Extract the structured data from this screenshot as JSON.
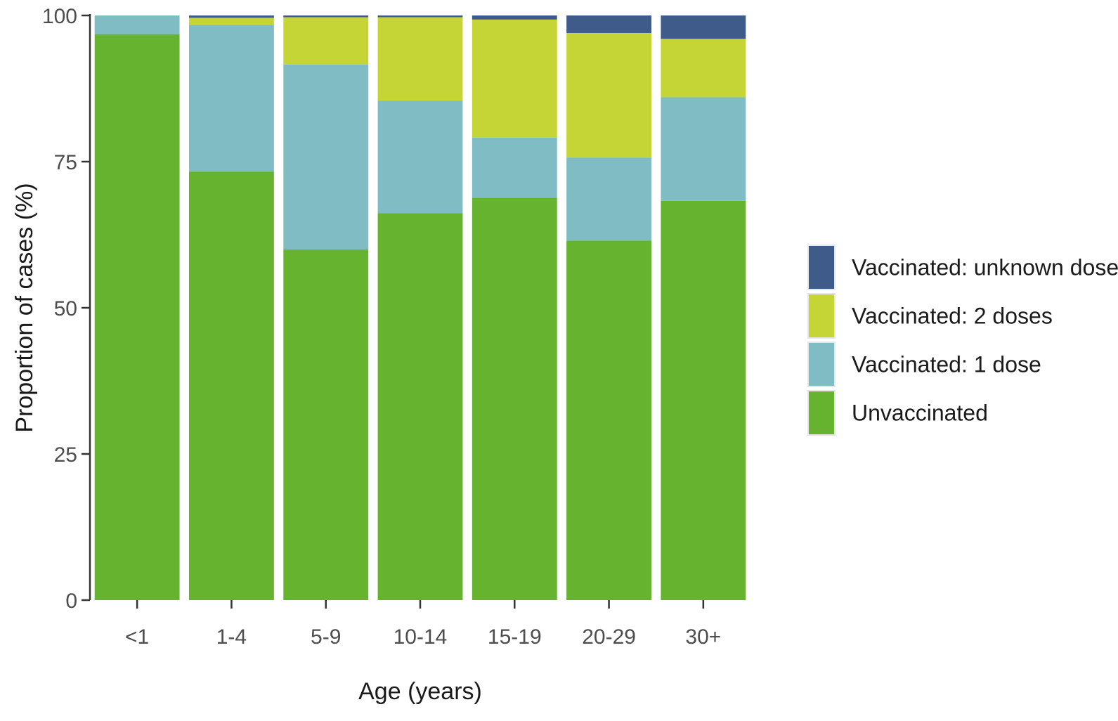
{
  "chart_data": {
    "type": "bar",
    "stacked": true,
    "title": "",
    "xlabel": "Age (years)",
    "ylabel": "Proportion of cases (%)",
    "ylim": [
      0,
      100
    ],
    "yticks": [
      0,
      25,
      50,
      75,
      100
    ],
    "grid": false,
    "legend_position": "right",
    "categories": [
      "<1",
      "1-4",
      "5-9",
      "10-14",
      "15-19",
      "20-29",
      "30+"
    ],
    "series": [
      {
        "name": "Unvaccinated",
        "color": "#65b32e",
        "values": [
          96.8,
          73.3,
          60.0,
          66.2,
          68.8,
          61.5,
          68.3
        ]
      },
      {
        "name": "Vaccinated: 1 dose",
        "color": "#7fbcc4",
        "values": [
          3.2,
          25.1,
          31.6,
          19.2,
          10.3,
          14.2,
          17.7
        ]
      },
      {
        "name": "Vaccinated: 2 doses",
        "color": "#c5d535",
        "values": [
          0.0,
          1.2,
          8.1,
          14.3,
          20.2,
          21.3,
          10.0
        ]
      },
      {
        "name": "Vaccinated: unknown doses",
        "color": "#3e5b8a",
        "values": [
          0.0,
          0.4,
          0.3,
          0.3,
          0.7,
          3.0,
          4.0
        ]
      }
    ],
    "legend_order": [
      "Vaccinated: unknown doses",
      "Vaccinated: 2 doses",
      "Vaccinated: 1 dose",
      "Unvaccinated"
    ]
  }
}
